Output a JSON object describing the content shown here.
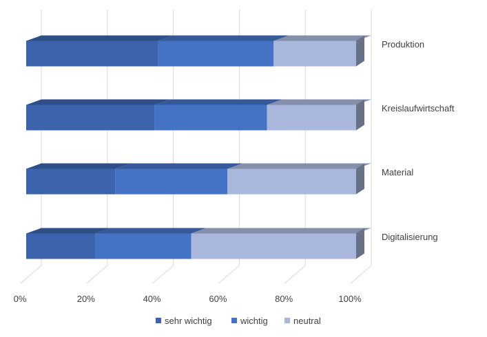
{
  "chart_data": {
    "type": "bar",
    "orientation": "horizontal",
    "stacked": "percent",
    "style": "3d",
    "categories": [
      "Produktion",
      "Kreislaufwirtschaft",
      "Material",
      "Digitalisierung"
    ],
    "series": [
      {
        "name": "sehr wichtig",
        "values": [
          40,
          39,
          27,
          21
        ],
        "color": "#3b64ad"
      },
      {
        "name": "wichtig",
        "values": [
          35,
          34,
          34,
          29
        ],
        "color": "#4472c4"
      },
      {
        "name": "neutral",
        "values": [
          25,
          27,
          39,
          50
        ],
        "color": "#a9b7dd"
      }
    ],
    "x_ticks": [
      "0%",
      "20%",
      "40%",
      "60%",
      "80%",
      "100%"
    ],
    "xlim": [
      0,
      100
    ],
    "grid": true,
    "legend_position": "bottom"
  }
}
